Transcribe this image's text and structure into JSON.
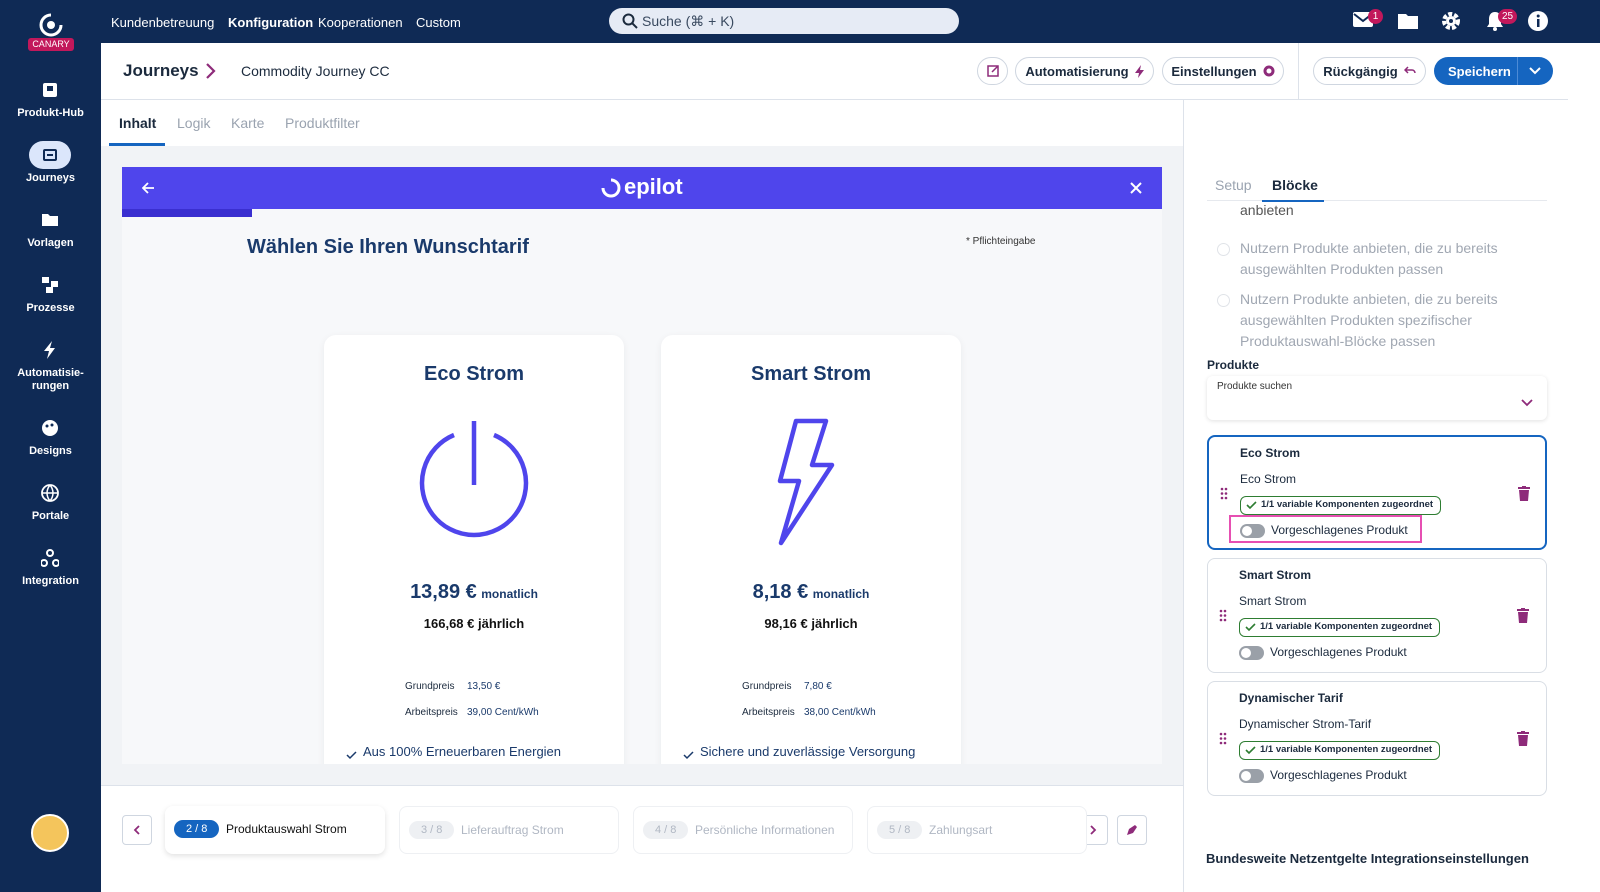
{
  "sidebar": {
    "brand": "CANARY",
    "items": [
      {
        "label": "Produkt-Hub"
      },
      {
        "label": "Journeys"
      },
      {
        "label": "Vorlagen"
      },
      {
        "label": "Prozesse"
      },
      {
        "label": "Automatisie-\nrungen"
      },
      {
        "label": "Designs"
      },
      {
        "label": "Portale"
      },
      {
        "label": "Integration"
      }
    ]
  },
  "topnav": {
    "links": [
      "Kundenbetreuung",
      "Konfiguration",
      "Kooperationen",
      "Custom"
    ],
    "search": "Suche (⌘ + K)",
    "mail_badge": 1,
    "notification_badge": 25
  },
  "header": {
    "breadcrumb": "Journeys",
    "journey_name": "Commodity Journey CC",
    "automation": "Automatisierung",
    "settings": "Einstellungen",
    "undo": "Rückgängig",
    "save": "Speichern"
  },
  "tabs": [
    "Inhalt",
    "Logik",
    "Karte",
    "Produktfilter"
  ],
  "preview": {
    "logo": "epilot",
    "title": "Wählen Sie Ihren Wunschtarif",
    "required_note": "* Pflichteingabe",
    "cards": [
      {
        "name": "Eco Strom",
        "price": "13,89 €",
        "period": "monatlich",
        "yearly": "166,68 € jährlich",
        "base_label": "Grundpreis",
        "base_price": "13,50 €",
        "work_label": "Arbeitspreis",
        "work_price": "39,00 Cent/kWh",
        "feature": "Aus 100% Erneuerbaren Energien"
      },
      {
        "name": "Smart Strom",
        "price": "8,18 €",
        "period": "monatlich",
        "yearly": "98,16 € jährlich",
        "base_label": "Grundpreis",
        "base_price": "7,80 €",
        "work_label": "Arbeitspreis",
        "work_price": "38,00 Cent/kWh",
        "feature": "Sichere und zuverlässige Versorgung"
      }
    ]
  },
  "steps": [
    {
      "index": "2 / 8",
      "label": "Produktauswahl Strom"
    },
    {
      "index": "3 / 8",
      "label": "Lieferauftrag Strom"
    },
    {
      "index": "4 / 8",
      "label": "Persönliche Informationen"
    },
    {
      "index": "5 / 8",
      "label": "Zahlungsart"
    }
  ],
  "panel": {
    "tabs": [
      "Setup",
      "Blöcke"
    ],
    "cut_text": "anbieten",
    "options": [
      "Nutzern Produkte anbieten, die zu bereits ausgewählten Produkten passen",
      "Nutzern Produkte anbieten, die zu bereits ausgewählten Produkten spezifischer Produktauswahl-Blöcke passen"
    ],
    "products_label": "Produkte",
    "search_placeholder": "Produkte suchen",
    "products": [
      {
        "title": "Eco Strom",
        "subtitle": "Eco Strom",
        "badge": "1/1 variable Komponenten zugeordnet",
        "toggle": "Vorgeschlagenes Produkt"
      },
      {
        "title": "Smart Strom",
        "subtitle": "Smart Strom",
        "badge": "1/1 variable Komponenten zugeordnet",
        "toggle": "Vorgeschlagenes Produkt"
      },
      {
        "title": "Dynamischer Tarif",
        "subtitle": "Dynamischer Strom-Tarif",
        "badge": "1/1 variable Komponenten zugeordnet",
        "toggle": "Vorgeschlagenes Produkt"
      }
    ],
    "section_title": "Bundesweite Netzentgelte Integrationseinstellungen"
  }
}
